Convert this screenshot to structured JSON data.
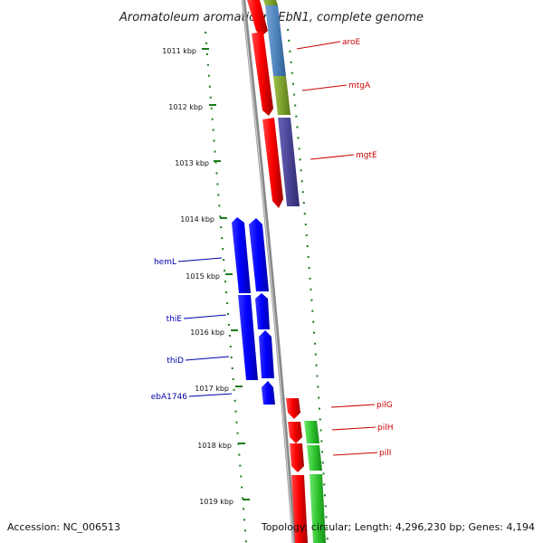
{
  "title": "Aromatoleum aromaticum EbN1, complete genome",
  "footer": {
    "accession": "Accession: NC_006513",
    "topology": "Topology: circular; Length: 4,296,230 bp; Genes: 4,194"
  },
  "colors": {
    "backbone": "#8a8a8a",
    "tick": "#1a7a1a",
    "forward_label": "#cc0000",
    "reverse_label": "#0000aa"
  },
  "ticks": [
    "1011 kbp",
    "1012 kbp",
    "1013 kbp",
    "1014 kbp",
    "1015 kbp",
    "1016 kbp",
    "1017 kbp",
    "1018 kbp",
    "1019 kbp"
  ],
  "genes_forward": [
    {
      "label": "aroE",
      "color": "#cc0000"
    },
    {
      "label": "mtgA",
      "color": "#cc0000"
    },
    {
      "label": "mgtE",
      "color": "#cc0000"
    },
    {
      "label": "pilG",
      "color": "#cc0000"
    },
    {
      "label": "pilH",
      "color": "#cc0000"
    },
    {
      "label": "pilI",
      "color": "#cc0000"
    }
  ],
  "genes_reverse": [
    {
      "label": "hemL",
      "color": "#0000aa"
    },
    {
      "label": "thiE",
      "color": "#0000aa"
    },
    {
      "label": "thiD",
      "color": "#0000aa"
    },
    {
      "label": "ebA1746",
      "color": "#0000aa"
    }
  ]
}
